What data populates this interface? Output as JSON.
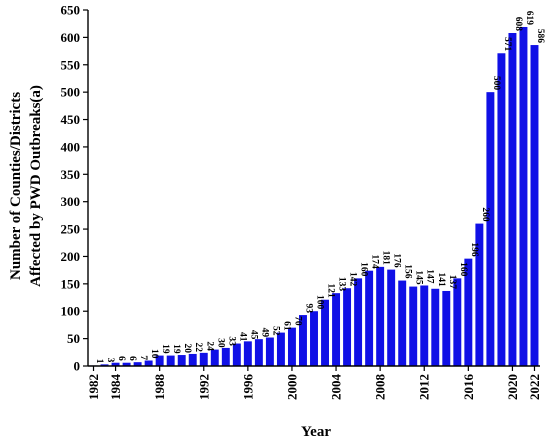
{
  "chart_data": {
    "type": "bar",
    "title": "",
    "xlabel": "Year",
    "ylabel_lines": [
      "Number of Counties/Districts",
      "Affected by PWD Outbreaks(a)"
    ],
    "ylim": [
      0,
      650
    ],
    "yticks": [
      0,
      50,
      100,
      150,
      200,
      250,
      300,
      350,
      400,
      450,
      500,
      550,
      600,
      650
    ],
    "grid": false,
    "bar_color": "#1010e6",
    "categories": [
      "1982",
      "1983",
      "1984",
      "1985",
      "1986",
      "1987",
      "1988",
      "1989",
      "1990",
      "1991",
      "1992",
      "1993",
      "1994",
      "1995",
      "1996",
      "1997",
      "1998",
      "1999",
      "2000",
      "2001",
      "2002",
      "2003",
      "2004",
      "2005",
      "2006",
      "2007",
      "2008",
      "2009",
      "2010",
      "2011",
      "2012",
      "2013",
      "2014",
      "2015",
      "2016",
      "2017",
      "2018",
      "2019",
      "2020",
      "2021",
      "2022"
    ],
    "xtick_labels": [
      "1982",
      "1984",
      "1988",
      "1992",
      "1996",
      "2000",
      "2004",
      "2008",
      "2012",
      "2016",
      "2020",
      "2022"
    ],
    "values": [
      1,
      3,
      6,
      6,
      7,
      10,
      19,
      19,
      20,
      22,
      24,
      30,
      33,
      41,
      45,
      49,
      52,
      61,
      70,
      93,
      100,
      121,
      133,
      142,
      160,
      174,
      181,
      176,
      156,
      145,
      147,
      141,
      137,
      160,
      196,
      260,
      500,
      571,
      608,
      619,
      586
    ],
    "data_labels": [
      "1",
      "3",
      "6",
      "6",
      "7",
      "10",
      "19",
      "19",
      "20",
      "22",
      "24",
      "30",
      "33",
      "41",
      "45",
      "49",
      "52",
      "61",
      "70",
      "93",
      "100",
      "121",
      "133",
      "142",
      "160",
      "174",
      "181",
      "176",
      "156",
      "145",
      "147",
      "141",
      "137",
      "160",
      "196",
      "260",
      "500",
      "571",
      "608",
      "619",
      "586"
    ]
  }
}
